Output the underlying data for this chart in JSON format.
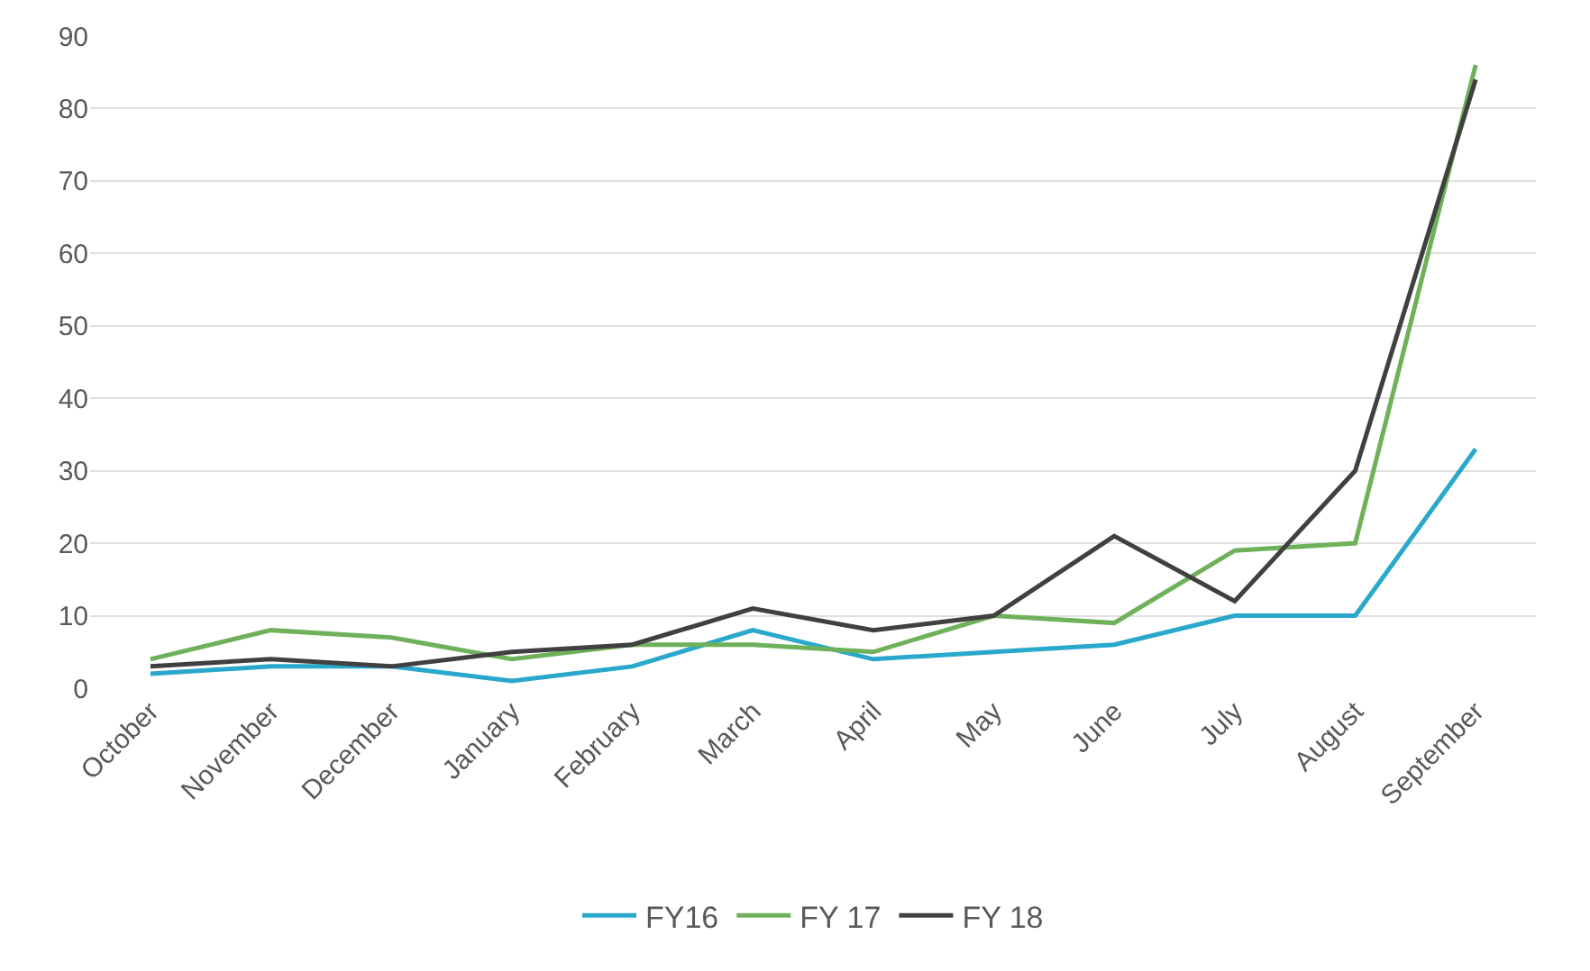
{
  "chart_data": {
    "type": "line",
    "categories": [
      "October",
      "November",
      "December",
      "January",
      "February",
      "March",
      "April",
      "May",
      "June",
      "July",
      "August",
      "September"
    ],
    "series": [
      {
        "name": "FY16",
        "color": "#29a8cc",
        "values": [
          2,
          3,
          3,
          1,
          3,
          8,
          4,
          5,
          6,
          10,
          10,
          33
        ]
      },
      {
        "name": "FY 17",
        "color": "#6fb05a",
        "values": [
          4,
          8,
          7,
          4,
          6,
          6,
          5,
          10,
          9,
          19,
          20,
          86
        ]
      },
      {
        "name": "FY 18",
        "color": "#404040",
        "values": [
          3,
          4,
          3,
          5,
          6,
          11,
          8,
          10,
          21,
          12,
          30,
          84
        ]
      }
    ],
    "ylim": [
      0,
      90
    ],
    "yticks": [
      0,
      10,
      20,
      30,
      40,
      50,
      60,
      70,
      80,
      90
    ],
    "grid": "y",
    "legend": "bottom",
    "marker": "none",
    "line_style": "solid"
  }
}
